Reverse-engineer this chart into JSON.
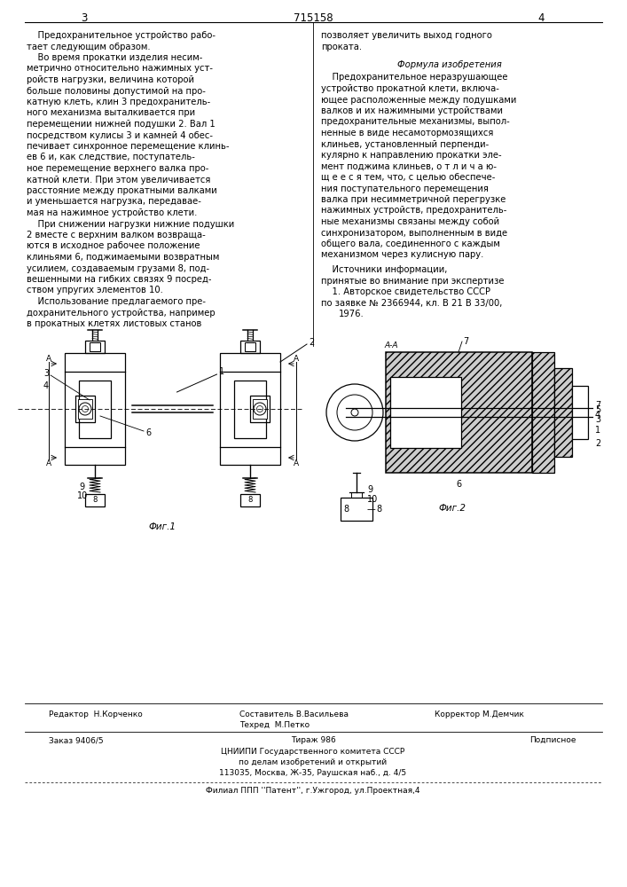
{
  "page_number_left": "3",
  "patent_number": "715158",
  "page_number_right": "4",
  "bg_color": "#ffffff",
  "text_color": "#000000",
  "left_col_lines": [
    "    Предохранительное устройство рабо-",
    "тает следующим образом.",
    "    Во время прокатки изделия несим-",
    "метрично относительно нажимных уст-",
    "ройств нагрузки, величина которой",
    "больше половины допустимой на про-",
    "катную клеть, клин 3 предохранитель-",
    "ного механизма выталкивается при",
    "перемещении нижней подушки 2. Вал 1",
    "посредством кулисы 3 и камней 4 обес-",
    "печивает синхронное перемещение клинь-",
    "ев 6 и, как следствие, поступатель-",
    "ное перемещение верхнего валка про-",
    "катной клети. При этом увеличивается",
    "расстояние между прокатными валками",
    "и уменьшается нагрузка, передавае-",
    "мая на нажимное устройство клети.",
    "    При снижении нагрузки нижние подушки",
    "2 вместе с верхним валком возвраща-",
    "ются в исходное рабочее положение",
    "клиньями 6, поджимаемыми возвратным",
    "усилием, создаваемым грузами 8, под-",
    "вешенными на гибких связях 9 посред-",
    "ством упругих элементов 10.",
    "    Использование предлагаемого пре-",
    "дохранительного устройства, например",
    "в прокатных клетях листовых станов"
  ],
  "right_col_top": [
    "позволяет увеличить выход годного",
    "проката."
  ],
  "formula_title": "Формула изобретения",
  "formula_lines": [
    "    Предохранительное неразрушающее",
    "устройство прокатной клети, включа-",
    "ющее расположенные между подушками",
    "валков и их нажимными устройствами",
    "предохранительные механизмы, выпол-",
    "ненные в виде несамотормозящихся",
    "клиньев, установленный перпенди-",
    "кулярно к направлению прокатки эле-",
    "мент поджима клиньев, о т л и ч а ю-",
    "щ е е с я тем, что, с целью обеспече-",
    "ния поступательного перемещения",
    "валка при несимметричной перегрузке",
    "нажимных устройств, предохранитель-",
    "ные механизмы связаны между собой",
    "синхронизатором, выполненным в виде",
    "общего вала, соединенного с каждым",
    "механизмом через кулисную пару."
  ],
  "sources_title": "    Источники информации,",
  "sources_sub": "принятые во внимание при экспертизе",
  "sources_1": "    1. Авторское свидетельство СССР",
  "sources_ref": "по заявке № 2366944, кл. В 21 В 33/00,",
  "sources_year": "1976.",
  "fig1_label": "Фиг.1",
  "fig2_label": "Фиг.2",
  "aa_label": "A-A",
  "bottom_editor": "Редактор  Н.Корченко",
  "bottom_comp": "Составитель В.Васильева",
  "bottom_corr": "Корректор М.Демчик",
  "bottom_tech": "Техред  М.Петко",
  "bottom_zakaz": "Заказ 9406/5",
  "bottom_tirazh": "Тираж 986",
  "bottom_podp": "Подписное",
  "bottom_cniip": "ЦНИИПИ Государственного комитета СССР",
  "bottom_po": "по делам изобретений и открытий",
  "bottom_addr": "113035, Москва, Ж-35, Раушская наб., д. 4/5",
  "bottom_filial": "Филиал ППП ''Патент'', г.Ужгород, ул.Проектная,4"
}
